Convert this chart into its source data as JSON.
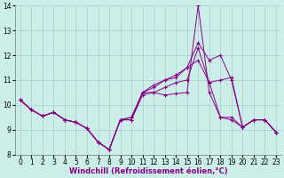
{
  "xlabel": "Windchill (Refroidissement éolien,°C)",
  "bg_color": "#cceee8",
  "line_color": "#880088",
  "marker": "+",
  "x_values": [
    0,
    1,
    2,
    3,
    4,
    5,
    6,
    7,
    8,
    9,
    10,
    11,
    12,
    13,
    14,
    15,
    16,
    17,
    18,
    19,
    20,
    21,
    22,
    23
  ],
  "series": [
    [
      10.2,
      9.8,
      9.55,
      9.7,
      9.4,
      9.3,
      9.05,
      8.5,
      8.2,
      9.4,
      9.4,
      10.5,
      10.5,
      10.4,
      10.45,
      10.5,
      14.0,
      10.5,
      9.5,
      9.5,
      9.1,
      9.4,
      9.4,
      8.9
    ],
    [
      10.2,
      9.8,
      9.55,
      9.7,
      9.4,
      9.3,
      9.05,
      8.5,
      8.2,
      9.4,
      9.4,
      10.4,
      10.5,
      10.7,
      10.9,
      11.0,
      12.3,
      10.9,
      9.5,
      9.4,
      9.1,
      9.4,
      9.4,
      8.9
    ],
    [
      10.2,
      9.8,
      9.55,
      9.7,
      9.4,
      9.3,
      9.05,
      8.5,
      8.2,
      9.4,
      9.5,
      10.5,
      10.7,
      11.0,
      11.1,
      11.5,
      12.5,
      11.8,
      12.0,
      11.0,
      9.1,
      9.4,
      9.4,
      8.9
    ],
    [
      10.2,
      9.8,
      9.55,
      9.7,
      9.4,
      9.3,
      9.05,
      8.5,
      8.2,
      9.4,
      9.5,
      10.5,
      10.8,
      11.0,
      11.2,
      11.5,
      11.8,
      10.9,
      11.0,
      11.1,
      9.1,
      9.4,
      9.4,
      8.9
    ]
  ],
  "ylim": [
    8,
    14
  ],
  "xlim_min": -0.5,
  "xlim_max": 23.5,
  "yticks": [
    8,
    9,
    10,
    11,
    12,
    13,
    14
  ],
  "xticks": [
    0,
    1,
    2,
    3,
    4,
    5,
    6,
    7,
    8,
    9,
    10,
    11,
    12,
    13,
    14,
    15,
    16,
    17,
    18,
    19,
    20,
    21,
    22,
    23
  ],
  "grid_color": "#aacccc",
  "tick_fontsize": 5.5,
  "label_fontsize": 6.0
}
